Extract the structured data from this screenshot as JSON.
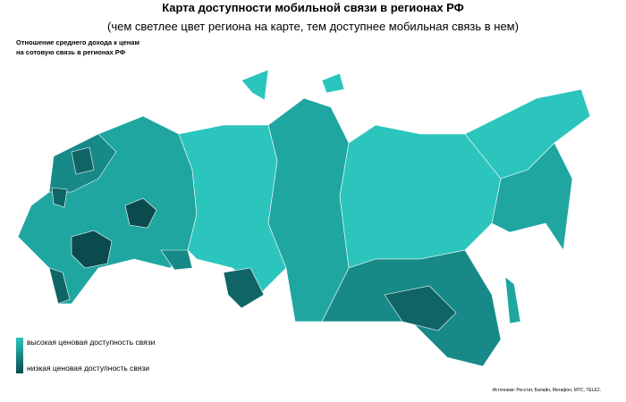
{
  "header": {
    "title": "Карта доступности мобильной связи в регионах РФ",
    "subtitle": "(чем светлее цвет региона на карте, тем доступнее мобильная связь в нем)"
  },
  "legend": {
    "title_lines": [
      "Отношение среднего дохода к ценам",
      "на сотовую связь в регионах РФ"
    ],
    "high": "высокая ценовая доступность связи",
    "low": "низкая ценовая доступность связи"
  },
  "source": "Источники: Росстат, Билайн, Мегафон, МТС, TELE2."
}
